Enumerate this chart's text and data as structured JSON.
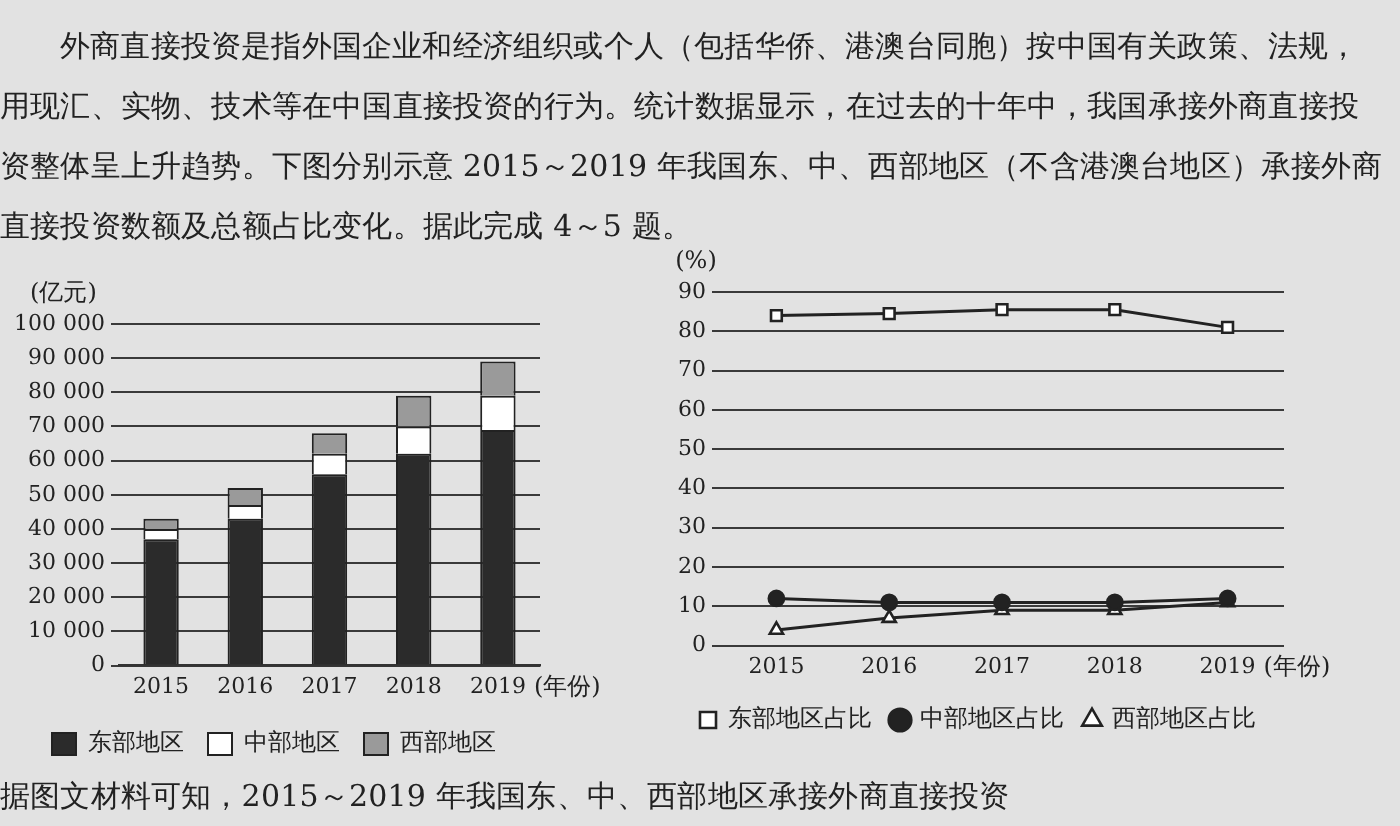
{
  "chart_data": [
    {
      "type": "bar",
      "stacked": true,
      "categories": [
        "2015",
        "2016",
        "2017",
        "2018",
        "2019"
      ],
      "xlabel": "(年份)",
      "ylabel": "(亿元)",
      "series": [
        {
          "name": "东部地区",
          "color": "#2b2b2b",
          "values": [
            37000,
            43000,
            56000,
            62000,
            69000
          ]
        },
        {
          "name": "中部地区",
          "color": "#ffffff",
          "values": [
            3000,
            4000,
            6000,
            8000,
            10000
          ]
        },
        {
          "name": "西部地区",
          "color": "#9a9a9a",
          "values": [
            3000,
            5000,
            6000,
            9000,
            10000
          ]
        }
      ],
      "ylim": [
        0,
        100000
      ],
      "yticks": [
        0,
        {
          "value": 10000,
          "label": "10 000"
        },
        {
          "value": 20000,
          "label": "20 000"
        },
        {
          "value": 30000,
          "label": "30 000"
        },
        {
          "value": 40000,
          "label": "40 000"
        },
        {
          "value": 50000,
          "label": "50 000"
        },
        {
          "value": 60000,
          "label": "60 000"
        },
        {
          "value": 70000,
          "label": "70 000"
        },
        {
          "value": 80000,
          "label": "80 000"
        },
        {
          "value": 90000,
          "label": "90 000"
        },
        {
          "value": 100000,
          "label": "100 000"
        }
      ],
      "grid": "y",
      "legend": "bottom",
      "annotations": [
        "外商直接投资是指外国企业和经济组织或个人（包括华侨、港澳台同胞）按中国有关政策、法规，用现汇、实物、技术等在中国直接投资的行为。统计数据显示，在过去的十年中，我国承接外商直接投资整体呈上升趋势。下图分别示意 2015～2019 年我国东、中、西部地区（不含港澳台地区）承接外商直接投资数额及总额占比变化。据此完成 4～5 题。",
        "据图文材料可知，2015～2019 年我国东、中、西部地区承接外商直接投资"
      ]
    },
    {
      "type": "line",
      "categories": [
        "2015",
        "2016",
        "2017",
        "2018",
        "2019"
      ],
      "xlabel": "(年份)",
      "ylabel": "(%)",
      "series": [
        {
          "name": "东部地区占比",
          "color": "#222222",
          "marker": "square",
          "values": [
            84,
            84.5,
            85.5,
            85.5,
            81
          ]
        },
        {
          "name": "中部地区占比",
          "color": "#222222",
          "marker": "circle",
          "values": [
            12,
            11,
            11,
            11,
            12
          ]
        },
        {
          "name": "西部地区占比",
          "color": "#222222",
          "marker": "triangle",
          "values": [
            4,
            7,
            9,
            9,
            11
          ]
        }
      ],
      "ylim": [
        0,
        90
      ],
      "yticks": [
        0,
        10,
        20,
        30,
        40,
        50,
        60,
        70,
        80,
        90
      ],
      "grid": "y",
      "legend": "bottom"
    }
  ]
}
